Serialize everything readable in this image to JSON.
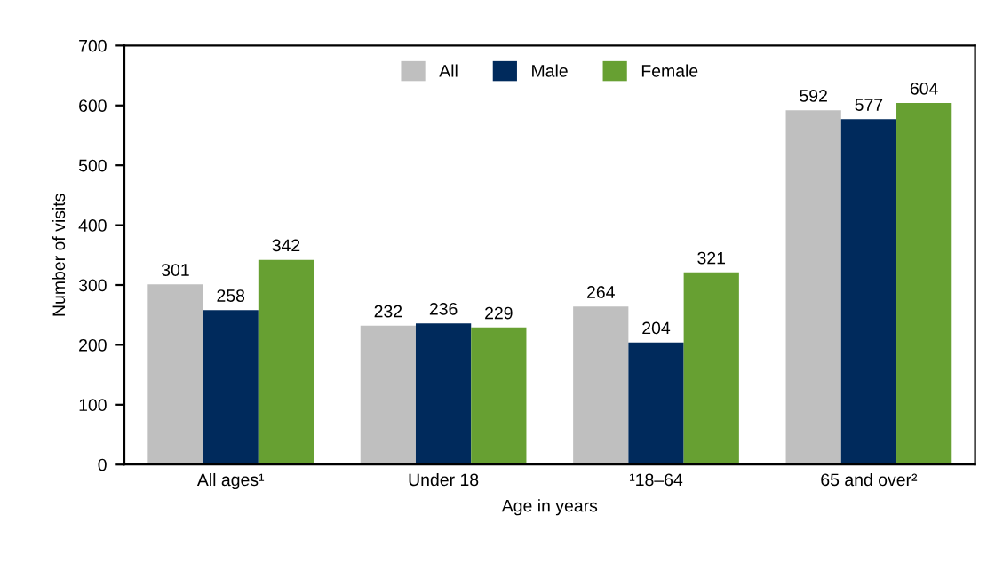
{
  "chart_data": {
    "type": "bar",
    "categories": [
      "All ages¹",
      "Under 18",
      "¹18–64",
      "65 and over²"
    ],
    "series": [
      {
        "name": "All",
        "color": "#bfbfbf",
        "values": [
          301,
          232,
          264,
          592
        ]
      },
      {
        "name": "Male",
        "color": "#002a5c",
        "values": [
          258,
          236,
          204,
          577
        ]
      },
      {
        "name": "Female",
        "color": "#67a032",
        "values": [
          342,
          229,
          321,
          604
        ]
      }
    ],
    "xlabel": "Age in years",
    "ylabel": "Number of visits",
    "ylim": [
      0,
      700
    ],
    "yticks": [
      0,
      100,
      200,
      300,
      400,
      500,
      600,
      700
    ],
    "grid": false,
    "legend": "top",
    "data_labels": true
  }
}
